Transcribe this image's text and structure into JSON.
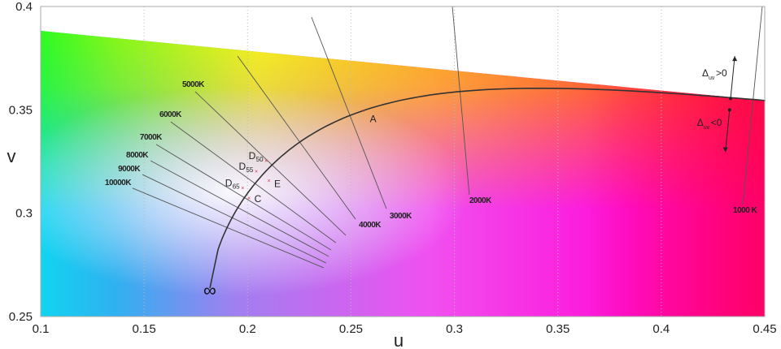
{
  "chart_data": {
    "type": "line",
    "xlabel": "u",
    "ylabel": "v",
    "xlim": [
      0.1,
      0.45
    ],
    "ylim": [
      0.25,
      0.4
    ],
    "x_ticks": [
      "0.1",
      "0.15",
      "0.2",
      "0.25",
      "0.3",
      "0.35",
      "0.4",
      "0.45"
    ],
    "y_ticks": [
      "0.25",
      "0.3",
      "0.35",
      "0.4"
    ],
    "grid": "vertical dotted",
    "spectral_boundary": [
      [
        0.1,
        0.3882
      ],
      [
        0.45,
        0.3545
      ]
    ],
    "planckian_locus": {
      "t_min": 1000,
      "t_max": 15000,
      "end_point": [
        0.1818,
        0.2638
      ],
      "end_label": "∞",
      "color": "#333333"
    },
    "isotherms": [
      {
        "label": "10000K",
        "from": [
          0.1444,
          0.3121
        ],
        "to": [
          0.2368,
          0.2736
        ]
      },
      {
        "label": "9000K",
        "from": [
          0.1492,
          0.3187
        ],
        "to": [
          0.238,
          0.2759
        ]
      },
      {
        "label": "8000K",
        "from": [
          0.1531,
          0.3254
        ],
        "to": [
          0.2392,
          0.2791
        ]
      },
      {
        "label": "7000K",
        "from": [
          0.1558,
          0.3333
        ],
        "to": [
          0.2404,
          0.2822
        ]
      },
      {
        "label": "6000K",
        "from": [
          0.1629,
          0.3442
        ],
        "to": [
          0.2427,
          0.2857
        ]
      },
      {
        "label": "5000K",
        "from": [
          0.1747,
          0.3588
        ],
        "to": [
          0.2475,
          0.2893
        ]
      },
      {
        "label": "4000K",
        "from": [
          0.1952,
          0.376
        ],
        "to": [
          0.2522,
          0.2971
        ]
      },
      {
        "label": "3000K",
        "from": [
          0.2309,
          0.3949
        ],
        "to": [
          0.2671,
          0.3022
        ]
      },
      {
        "label": "2000K",
        "from": [
          0.299,
          0.4
        ],
        "to": [
          0.3072,
          0.3089
        ]
      },
      {
        "label": "1000 K",
        "from": [
          0.4488,
          0.4
        ],
        "to": [
          0.4394,
          0.3042
        ]
      }
    ],
    "illuminants": [
      {
        "label": "D",
        "sub": "50",
        "u": 0.2092,
        "v": 0.3254
      },
      {
        "label": "D",
        "sub": "55",
        "u": 0.2044,
        "v": 0.3202
      },
      {
        "label": "D",
        "sub": "65",
        "u": 0.1978,
        "v": 0.3122
      },
      {
        "label": "C",
        "sub": "",
        "u": 0.2009,
        "v": 0.3073
      },
      {
        "label": "E",
        "sub": "",
        "u": 0.2105,
        "v": 0.3158
      },
      {
        "label": "A",
        "sub": "",
        "u": 0.256,
        "v": 0.3495
      }
    ],
    "marker_color": "#e03040",
    "annotations": [
      {
        "label": "Δ",
        "sub": "uv",
        "text": ">0",
        "from": [
          0.4335,
          0.3555
        ],
        "to": [
          0.4355,
          0.376
        ]
      },
      {
        "label": "Δ",
        "sub": "uv",
        "text": "<0",
        "from": [
          0.433,
          0.35
        ],
        "to": [
          0.431,
          0.3295
        ]
      }
    ]
  }
}
